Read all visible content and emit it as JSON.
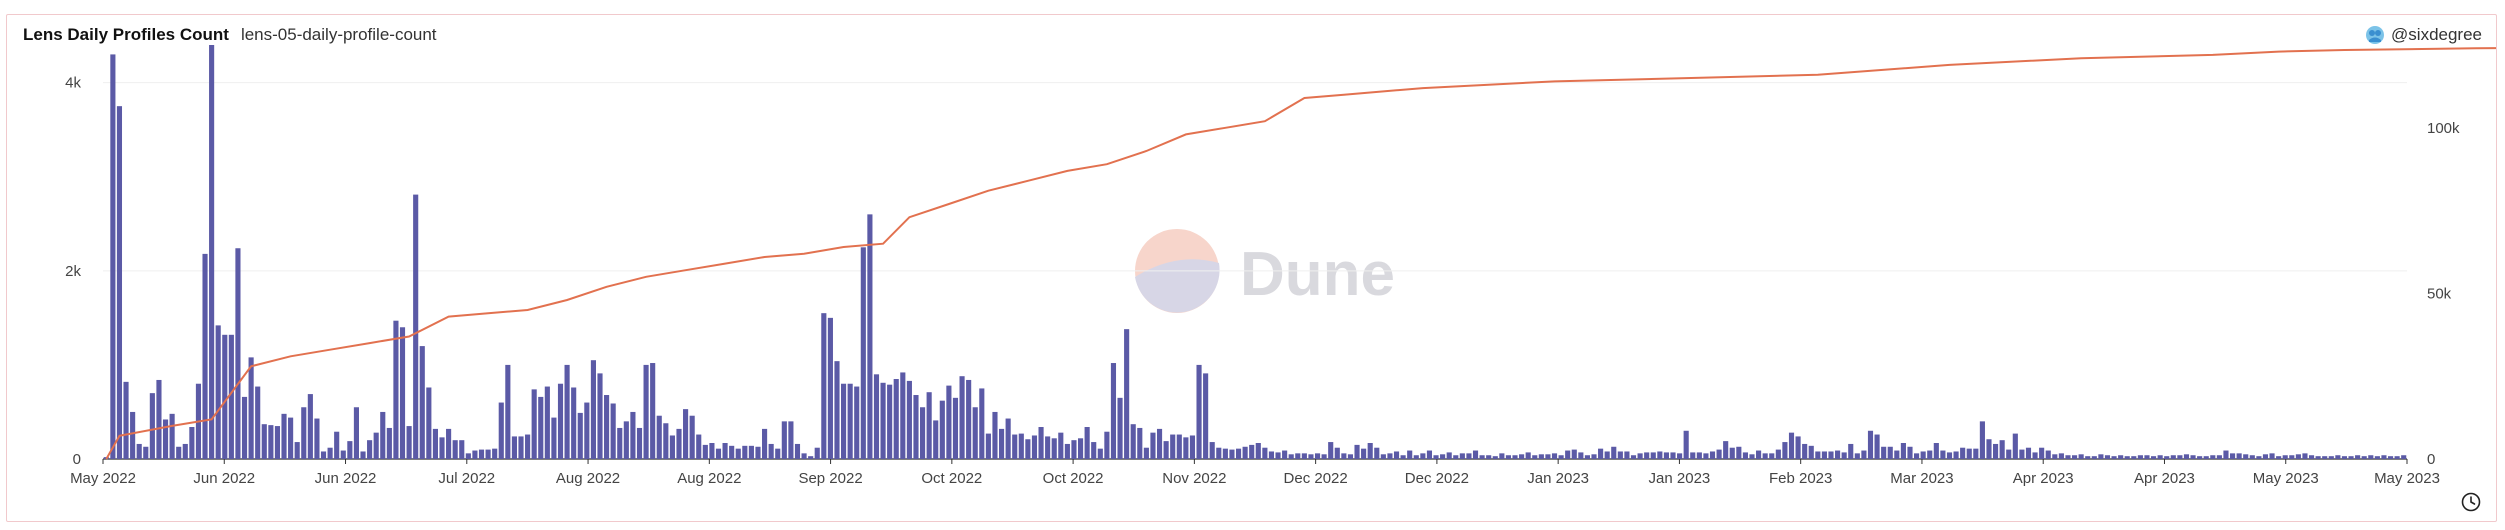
{
  "header": {
    "title": "Lens Daily Profiles Count",
    "subtitle": "lens-05-daily-profile-count",
    "author": "@sixdegree"
  },
  "watermark": "Dune",
  "icons": {
    "author": "user-avatar-icon",
    "refresh": "clock-icon"
  },
  "colors": {
    "bars": "#5b5aa6",
    "line": "#e2714f",
    "card_border": "#f1c9cc"
  },
  "chart_data": {
    "type": "bar",
    "title": "Lens Daily Profiles Count",
    "xlabel": "",
    "ylabel": "",
    "y_left": {
      "ylim": [
        0,
        4400
      ],
      "ticks": [
        0,
        2000,
        4000
      ],
      "tick_labels": [
        "0",
        "2k",
        "4k"
      ]
    },
    "y_right": {
      "ylim": [
        0,
        125000
      ],
      "ticks": [
        0,
        50000,
        100000
      ],
      "tick_labels": [
        "0",
        "50k",
        "100k"
      ]
    },
    "x_tick_labels": [
      "May 2022",
      "Jun 2022",
      "Jun 2022",
      "Jul 2022",
      "Aug 2022",
      "Aug 2022",
      "Sep 2022",
      "Oct 2022",
      "Oct 2022",
      "Nov 2022",
      "Dec 2022",
      "Dec 2022",
      "Jan 2023",
      "Jan 2023",
      "Feb 2023",
      "Mar 2023",
      "Apr 2023",
      "Apr 2023",
      "May 2023",
      "May 2023"
    ],
    "grid": true,
    "legend": "none",
    "series": [
      {
        "type": "bar",
        "axis": "left",
        "values": [
          20,
          4300,
          3750,
          820,
          500,
          160,
          130,
          700,
          840,
          420,
          480,
          130,
          160,
          340,
          800,
          2180,
          4400,
          1420,
          1320,
          1320,
          2240,
          660,
          1080,
          770,
          370,
          360,
          350,
          480,
          440,
          180,
          550,
          690,
          430,
          80,
          120,
          290,
          90,
          190,
          550,
          80,
          200,
          280,
          500,
          330,
          1470,
          1400,
          350,
          2810,
          1200,
          760,
          320,
          230,
          320,
          200,
          200,
          60,
          90,
          100,
          100,
          110,
          600,
          1000,
          240,
          240,
          260,
          740,
          660,
          770,
          440,
          800,
          1000,
          760,
          490,
          600,
          1050,
          910,
          680,
          590,
          330,
          400,
          500,
          330,
          1000,
          1020,
          460,
          380,
          250,
          320,
          530,
          460,
          260,
          150,
          170,
          110,
          170,
          140,
          110,
          140,
          140,
          130,
          320,
          160,
          110,
          400,
          400,
          160,
          60,
          30,
          120,
          1550,
          1500,
          1040,
          800,
          800,
          770,
          2250,
          2600,
          900,
          810,
          790,
          850,
          920,
          830,
          680,
          550,
          710,
          410,
          620,
          780,
          650,
          880,
          840,
          550,
          750,
          270,
          500,
          320,
          430,
          260,
          270,
          210,
          250,
          340,
          240,
          220,
          280,
          160,
          200,
          220,
          340,
          180,
          110,
          290,
          1020,
          650,
          1380,
          370,
          330,
          120,
          280,
          320,
          190,
          260,
          260,
          230,
          250,
          1000,
          910,
          180,
          120,
          110,
          100,
          110,
          130,
          150,
          170,
          120,
          80,
          70,
          90,
          50,
          60,
          60,
          50,
          60,
          50,
          180,
          120,
          60,
          50,
          150,
          110,
          170,
          120,
          50,
          60,
          80,
          40,
          90,
          40,
          60,
          90,
          40,
          50,
          70,
          40,
          60,
          60,
          90,
          40,
          40,
          30,
          60,
          40,
          40,
          50,
          70,
          40,
          50,
          50,
          60,
          40,
          90,
          100,
          70,
          40,
          50,
          110,
          80,
          130,
          80,
          80,
          40,
          60,
          70,
          70,
          80,
          70,
          70,
          60,
          300,
          70,
          70,
          60,
          80,
          100,
          190,
          120,
          130,
          70,
          50,
          90,
          60,
          60,
          100,
          180,
          280,
          240,
          160,
          140,
          80,
          80,
          80,
          90,
          70,
          160,
          60,
          90,
          300,
          260,
          130,
          130,
          90,
          170,
          130,
          60,
          80,
          90,
          170,
          90,
          70,
          80,
          120,
          110,
          110,
          400,
          210,
          160,
          200,
          100,
          270,
          100,
          120,
          70,
          120,
          90,
          50,
          60,
          40,
          40,
          50,
          30,
          30,
          50,
          40,
          30,
          40,
          30,
          30,
          40,
          40,
          30,
          40,
          30,
          40,
          40,
          50,
          40,
          30,
          30,
          40,
          40,
          90,
          60,
          60,
          50,
          40,
          30,
          50,
          60,
          30,
          40,
          40,
          50,
          60,
          40,
          30,
          30,
          30,
          40,
          30,
          30,
          40,
          30,
          40,
          30,
          40,
          30,
          30,
          40
        ]
      },
      {
        "type": "line",
        "axis": "right",
        "cumulative_points": [
          [
            0,
            0
          ],
          [
            2,
            7000
          ],
          [
            10,
            10000
          ],
          [
            16,
            12000
          ],
          [
            22,
            28000
          ],
          [
            28,
            31000
          ],
          [
            34,
            33000
          ],
          [
            40,
            35000
          ],
          [
            46,
            37000
          ],
          [
            52,
            43000
          ],
          [
            58,
            44000
          ],
          [
            64,
            45000
          ],
          [
            70,
            48000
          ],
          [
            76,
            52000
          ],
          [
            82,
            55000
          ],
          [
            88,
            57000
          ],
          [
            94,
            59000
          ],
          [
            100,
            61000
          ],
          [
            106,
            62000
          ],
          [
            112,
            64000
          ],
          [
            118,
            65000
          ],
          [
            122,
            73000
          ],
          [
            128,
            77000
          ],
          [
            134,
            81000
          ],
          [
            140,
            84000
          ],
          [
            146,
            87000
          ],
          [
            152,
            89000
          ],
          [
            158,
            93000
          ],
          [
            164,
            98000
          ],
          [
            170,
            100000
          ],
          [
            176,
            102000
          ],
          [
            182,
            109000
          ],
          [
            188,
            110000
          ],
          [
            194,
            111000
          ],
          [
            200,
            112000
          ],
          [
            210,
            113000
          ],
          [
            220,
            114000
          ],
          [
            240,
            115000
          ],
          [
            260,
            116000
          ],
          [
            280,
            119000
          ],
          [
            300,
            121000
          ],
          [
            320,
            122000
          ],
          [
            330,
            123000
          ],
          [
            340,
            123500
          ],
          [
            360,
            124000
          ],
          [
            370,
            124200
          ]
        ]
      }
    ]
  }
}
